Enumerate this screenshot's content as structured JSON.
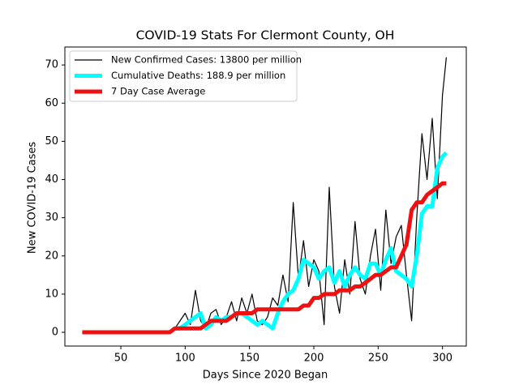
{
  "chart_data": {
    "type": "line",
    "title": "COVID-19 Stats For Clermont County, OH",
    "x_label": "Days Since 2020 Began",
    "y_label": "New COVID-19 Cases",
    "x": [
      20,
      24,
      28,
      32,
      36,
      40,
      44,
      48,
      52,
      56,
      60,
      64,
      68,
      72,
      76,
      80,
      84,
      88,
      92,
      96,
      100,
      104,
      108,
      112,
      116,
      120,
      124,
      128,
      132,
      136,
      140,
      144,
      148,
      152,
      156,
      160,
      164,
      168,
      172,
      176,
      180,
      184,
      188,
      192,
      196,
      200,
      204,
      208,
      212,
      216,
      220,
      224,
      228,
      232,
      236,
      240,
      244,
      248,
      252,
      256,
      260,
      264,
      268,
      272,
      276,
      280,
      284,
      288,
      292,
      296,
      300,
      303
    ],
    "series": [
      {
        "name": "New Confirmed Cases: 13800 per million",
        "color": "#000000",
        "width": 1.2,
        "values": [
          null,
          null,
          null,
          null,
          null,
          null,
          null,
          null,
          null,
          null,
          null,
          null,
          null,
          null,
          null,
          null,
          null,
          0,
          1,
          3,
          5,
          2,
          11,
          3,
          1,
          5,
          6,
          2,
          4,
          8,
          3,
          9,
          5,
          10,
          3,
          2,
          4,
          9,
          7,
          15,
          8,
          34,
          14,
          24,
          12,
          19,
          16,
          2,
          38,
          12,
          5,
          19,
          10,
          29,
          14,
          10,
          20,
          27,
          11,
          32,
          18,
          25,
          28,
          15,
          3,
          30,
          52,
          40,
          56,
          35,
          62,
          72
        ]
      },
      {
        "name": "Cumulative Deaths: 188.9 per million",
        "color": "#00ffff",
        "width": 5,
        "values": [
          null,
          null,
          null,
          null,
          null,
          null,
          null,
          null,
          null,
          null,
          null,
          null,
          null,
          null,
          null,
          null,
          null,
          null,
          1,
          1,
          2,
          3,
          4,
          5,
          1,
          2,
          4,
          3,
          4,
          4,
          5,
          5,
          4,
          3,
          2,
          3,
          2,
          1,
          5,
          8,
          10,
          11,
          14,
          19,
          18,
          17,
          14,
          16,
          17,
          13,
          16,
          12,
          15,
          17,
          15,
          14,
          18,
          18,
          15,
          19,
          22,
          16,
          15,
          14,
          12,
          20,
          31,
          33,
          33,
          43,
          46,
          47
        ]
      },
      {
        "name": "7 Day Case Average",
        "color": "#ee1111",
        "width": 5,
        "values": [
          0,
          0,
          0,
          0,
          0,
          0,
          0,
          0,
          0,
          0,
          0,
          0,
          0,
          0,
          0,
          0,
          0,
          0,
          1,
          1,
          1,
          1,
          1,
          1,
          2,
          3,
          3,
          3,
          3,
          4,
          5,
          5,
          5,
          5,
          6,
          6,
          6,
          6,
          6,
          6,
          6,
          6,
          6,
          7,
          7,
          9,
          9,
          10,
          10,
          10,
          11,
          11,
          11,
          12,
          12,
          13,
          14,
          15,
          15,
          16,
          17,
          17,
          20,
          23,
          32,
          34,
          34,
          36,
          37,
          38,
          39,
          39
        ]
      }
    ],
    "xlim": [
      6.5,
      318.5
    ],
    "ylim": [
      -3.6,
      74.7
    ],
    "xticks": [
      50,
      100,
      150,
      200,
      250,
      300
    ],
    "yticks": [
      0,
      10,
      20,
      30,
      40,
      50,
      60,
      70
    ],
    "legend": "upper left"
  }
}
